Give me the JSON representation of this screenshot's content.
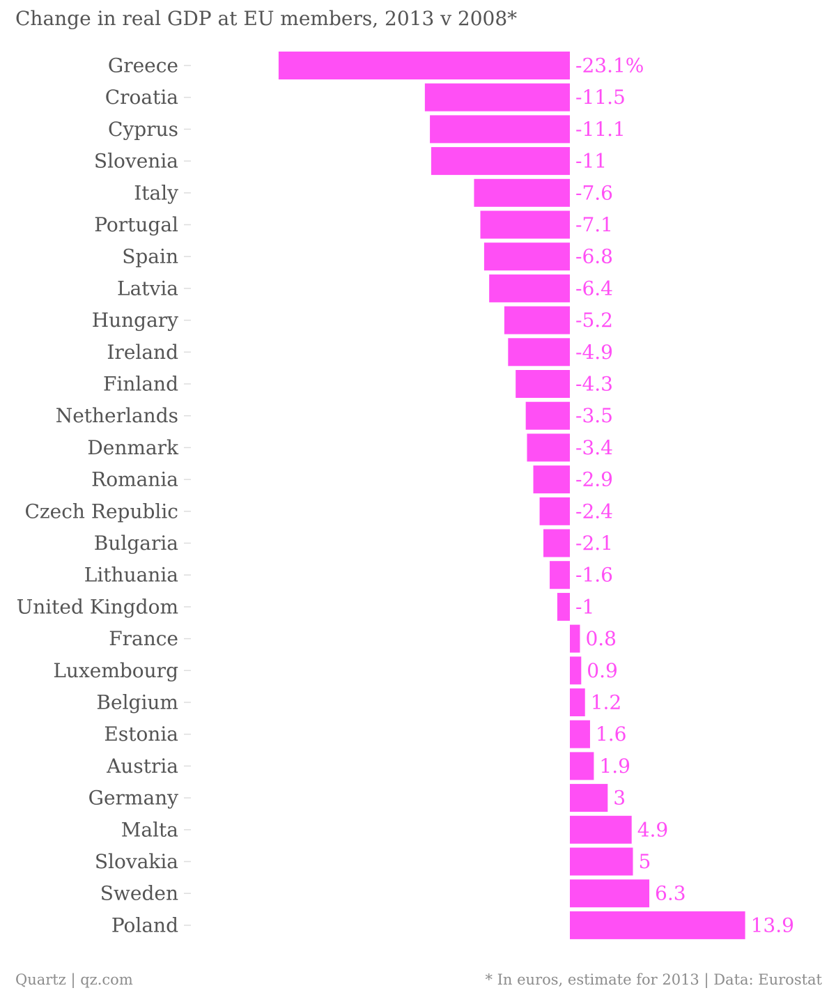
{
  "chart_data": {
    "type": "bar",
    "orientation": "horizontal",
    "title": "Change in real GDP at EU members, 2013 v 2008*",
    "categories": [
      "Greece",
      "Croatia",
      "Cyprus",
      "Slovenia",
      "Italy",
      "Portugal",
      "Spain",
      "Latvia",
      "Hungary",
      "Ireland",
      "Finland",
      "Netherlands",
      "Denmark",
      "Romania",
      "Czech Republic",
      "Bulgaria",
      "Lithuania",
      "United Kingdom",
      "France",
      "Luxembourg",
      "Belgium",
      "Estonia",
      "Austria",
      "Germany",
      "Malta",
      "Slovakia",
      "Sweden",
      "Poland"
    ],
    "values": [
      -23.1,
      -11.5,
      -11.1,
      -11,
      -7.6,
      -7.1,
      -6.8,
      -6.4,
      -5.2,
      -4.9,
      -4.3,
      -3.5,
      -3.4,
      -2.9,
      -2.4,
      -2.1,
      -1.6,
      -1,
      0.8,
      0.9,
      1.2,
      1.6,
      1.9,
      3,
      4.9,
      5,
      6.3,
      13.9
    ],
    "value_labels": [
      "-23.1%",
      "-11.5",
      "-11.1",
      "-11",
      "-7.6",
      "-7.1",
      "-6.8",
      "-6.4",
      "-5.2",
      "-4.9",
      "-4.3",
      "-3.5",
      "-3.4",
      "-2.9",
      "-2.4",
      "-2.1",
      "-1.6",
      "-1",
      "0.8",
      "0.9",
      "1.2",
      "1.6",
      "1.9",
      "3",
      "4.9",
      "5",
      "6.3",
      "13.9"
    ],
    "xlim": [
      -23.1,
      13.9
    ],
    "grid": false,
    "color": "#ff4ff5",
    "label_color": "#ff4ff5"
  },
  "footer": {
    "source": "Quartz | qz.com",
    "note": "* In euros, estimate for 2013 | Data: Eurostat"
  }
}
